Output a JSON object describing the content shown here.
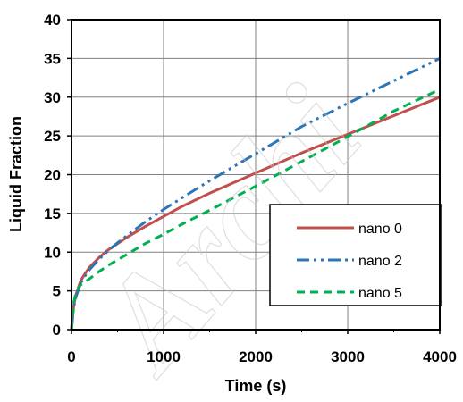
{
  "chart_data": {
    "type": "line",
    "xlabel": "Time (s)",
    "ylabel": "Liquid  Fraction",
    "xlim": [
      0,
      4000
    ],
    "ylim": [
      0,
      40
    ],
    "xticks": [
      0,
      1000,
      2000,
      3000,
      4000
    ],
    "yticks": [
      0,
      5,
      10,
      15,
      20,
      25,
      30,
      35,
      40
    ],
    "x_tick_labels": [
      "0",
      "1000",
      "2000",
      "3000",
      "4000"
    ],
    "y_tick_labels": [
      "0",
      "5",
      "10",
      "15",
      "20",
      "25",
      "30",
      "35",
      "40"
    ],
    "grid": true,
    "legend_position": "bottom-right",
    "series": [
      {
        "name": "nano 0",
        "color": "#c0504d",
        "dash": "solid",
        "x": [
          0,
          25,
          50,
          100,
          150,
          200,
          300,
          400,
          500,
          600,
          800,
          1000,
          1200,
          1500,
          2000,
          2500,
          3000,
          3500,
          4000
        ],
        "y": [
          0,
          3.2,
          4.6,
          6.3,
          7.3,
          8.1,
          9.3,
          10.3,
          11.1,
          11.9,
          13.3,
          14.6,
          15.9,
          17.6,
          20.2,
          22.8,
          25.2,
          27.6,
          30.0
        ]
      },
      {
        "name": "nano 2",
        "color": "#2e75b6",
        "dash": "dash-dot-dot",
        "x": [
          0,
          25,
          50,
          100,
          150,
          200,
          300,
          400,
          500,
          600,
          800,
          1000,
          1200,
          1500,
          2000,
          2500,
          3000,
          3500,
          4000
        ],
        "y": [
          0,
          3.0,
          4.3,
          6.0,
          7.0,
          7.8,
          9.1,
          10.2,
          11.2,
          12.1,
          13.9,
          15.5,
          17.0,
          19.2,
          22.7,
          26.2,
          29.2,
          32.1,
          35.0
        ]
      },
      {
        "name": "nano 5",
        "color": "#00b050",
        "dash": "dashed",
        "x": [
          0,
          25,
          50,
          100,
          150,
          200,
          300,
          400,
          500,
          600,
          800,
          1000,
          1200,
          1500,
          2000,
          2500,
          3000,
          3500,
          4000
        ],
        "y": [
          0,
          3.5,
          4.9,
          5.8,
          6.2,
          6.6,
          7.5,
          8.3,
          9.0,
          9.7,
          11.1,
          12.3,
          13.6,
          15.4,
          18.5,
          21.7,
          24.9,
          28.2,
          31.0
        ]
      }
    ]
  },
  "watermark": {
    "text": "Archi"
  }
}
